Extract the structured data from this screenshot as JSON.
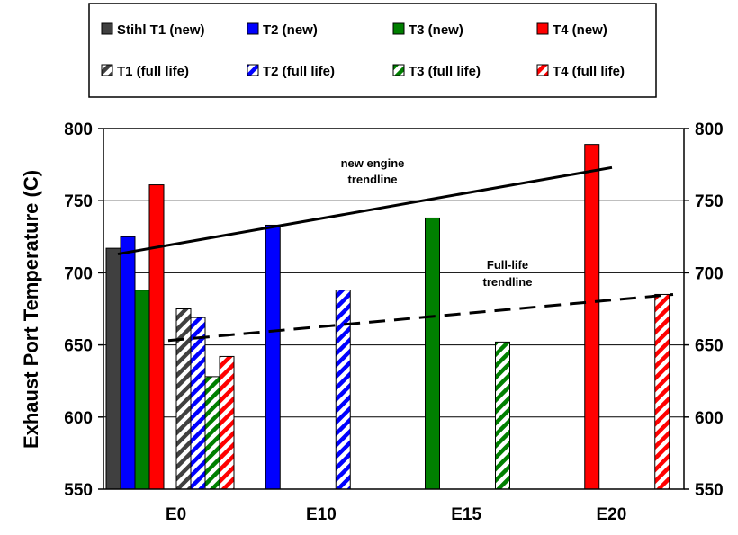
{
  "chart_data": {
    "type": "bar",
    "ylabel": "Exhaust Port Temperature (C)",
    "xlabel": "",
    "ylim": [
      550,
      800
    ],
    "yticks": [
      550,
      600,
      650,
      700,
      750,
      800
    ],
    "right_axis": true,
    "grid": "horizontal",
    "legend_position": "top",
    "categories": [
      "E0",
      "E10",
      "E15",
      "E20"
    ],
    "series": [
      {
        "name": "Stihl T1 (new)",
        "color": "#404040",
        "pattern": "solid",
        "values": [
          717,
          null,
          null,
          null
        ]
      },
      {
        "name": "T2 (new)",
        "color": "#0000ff",
        "pattern": "solid",
        "values": [
          725,
          733,
          null,
          null
        ]
      },
      {
        "name": "T3 (new)",
        "color": "#007f00",
        "pattern": "solid",
        "values": [
          688,
          null,
          738,
          null
        ]
      },
      {
        "name": "T4 (new)",
        "color": "#ff0000",
        "pattern": "solid",
        "values": [
          761,
          null,
          null,
          789
        ]
      },
      {
        "name": "T1 (full life)",
        "color": "#404040",
        "pattern": "hatched",
        "values": [
          675,
          null,
          null,
          null
        ]
      },
      {
        "name": "T2 (full life)",
        "color": "#0000ff",
        "pattern": "hatched",
        "values": [
          669,
          688,
          null,
          null
        ]
      },
      {
        "name": "T3 (full life)",
        "color": "#007f00",
        "pattern": "hatched",
        "values": [
          628,
          null,
          652,
          null
        ]
      },
      {
        "name": "T4 (full life)",
        "color": "#ff0000",
        "pattern": "hatched",
        "values": [
          642,
          null,
          null,
          685
        ]
      }
    ],
    "trendlines": [
      {
        "label": "new engine trendline",
        "label_lines": [
          "new engine",
          "trendline"
        ],
        "style": "solid",
        "from": 713,
        "to": 773
      },
      {
        "label": "Full-life trendline",
        "label_lines": [
          "Full-life",
          "trendline"
        ],
        "style": "dashed",
        "from": 653,
        "to": 685
      }
    ]
  }
}
